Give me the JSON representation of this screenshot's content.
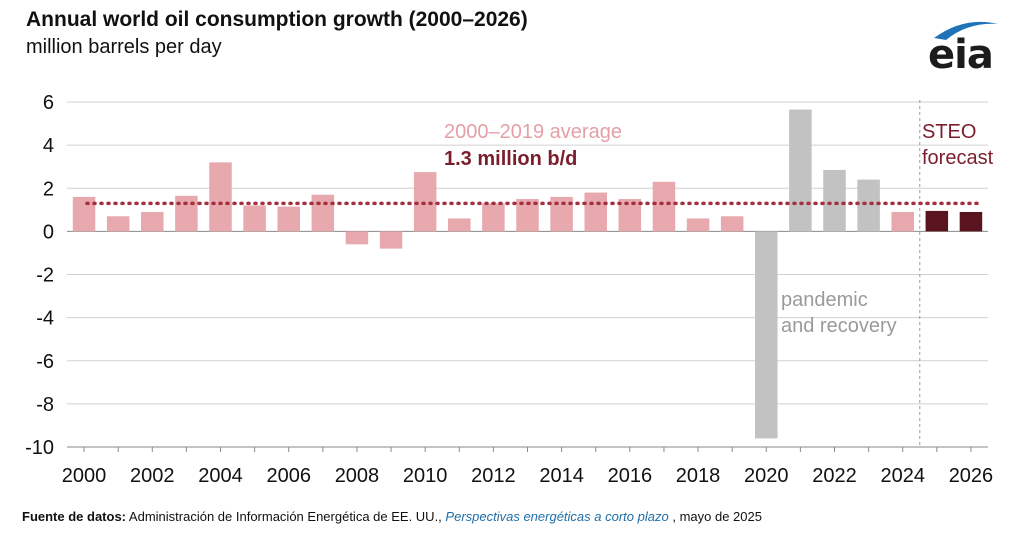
{
  "header": {
    "title": "Annual world oil consumption growth (2000–2026)",
    "subtitle": "million barrels per day"
  },
  "logo": {
    "text": "eia",
    "accent_color": "#1e73b8"
  },
  "source": {
    "label": "Fuente de datos:",
    "text": "Administración de Información Energética de EE. UU.,",
    "link": "Perspectivas energéticas a corto plazo",
    "date": ", mayo de 2025"
  },
  "colors": {
    "historical": "#e8a9ae",
    "pandemic": "#c2c2c2",
    "forecast": "#5a1420",
    "average_line": "#a4313f",
    "average_label": "#e4a0a6",
    "pandemic_label": "#9a9a9a",
    "forecast_label": "#7a1e2c",
    "grid": "#d0d0d0"
  },
  "chart_data": {
    "type": "bar",
    "x": [
      2000,
      2001,
      2002,
      2003,
      2004,
      2005,
      2006,
      2007,
      2008,
      2009,
      2010,
      2011,
      2012,
      2013,
      2014,
      2015,
      2016,
      2017,
      2018,
      2019,
      2020,
      2021,
      2022,
      2023,
      2024,
      2025,
      2026
    ],
    "values": [
      1.6,
      0.7,
      0.9,
      1.65,
      3.2,
      1.2,
      1.15,
      1.7,
      -0.6,
      -0.8,
      2.75,
      0.6,
      1.3,
      1.5,
      1.6,
      1.8,
      1.5,
      2.3,
      0.6,
      0.7,
      -9.6,
      5.65,
      2.85,
      2.4,
      0.9,
      0.95,
      0.9
    ],
    "groups": [
      "historical",
      "historical",
      "historical",
      "historical",
      "historical",
      "historical",
      "historical",
      "historical",
      "historical",
      "historical",
      "historical",
      "historical",
      "historical",
      "historical",
      "historical",
      "historical",
      "historical",
      "historical",
      "historical",
      "historical",
      "pandemic",
      "pandemic",
      "pandemic",
      "pandemic",
      "historical",
      "forecast",
      "forecast"
    ],
    "ylim": [
      -10,
      6
    ],
    "yticks": [
      6,
      4,
      2,
      0,
      -2,
      -4,
      -6,
      -8,
      -10
    ],
    "xticks": [
      2000,
      2002,
      2004,
      2006,
      2008,
      2010,
      2012,
      2014,
      2016,
      2018,
      2020,
      2022,
      2024,
      2026
    ],
    "average": {
      "value": 1.3,
      "label_line1": "2000–2019 average",
      "label_line2": "1.3 million b/d"
    },
    "annotations": {
      "pandemic_line1": "pandemic",
      "pandemic_line2": "and recovery",
      "forecast_line1": "STEO",
      "forecast_line2": "forecast"
    },
    "forecast_divider_x": 2024.5,
    "grid": true
  }
}
